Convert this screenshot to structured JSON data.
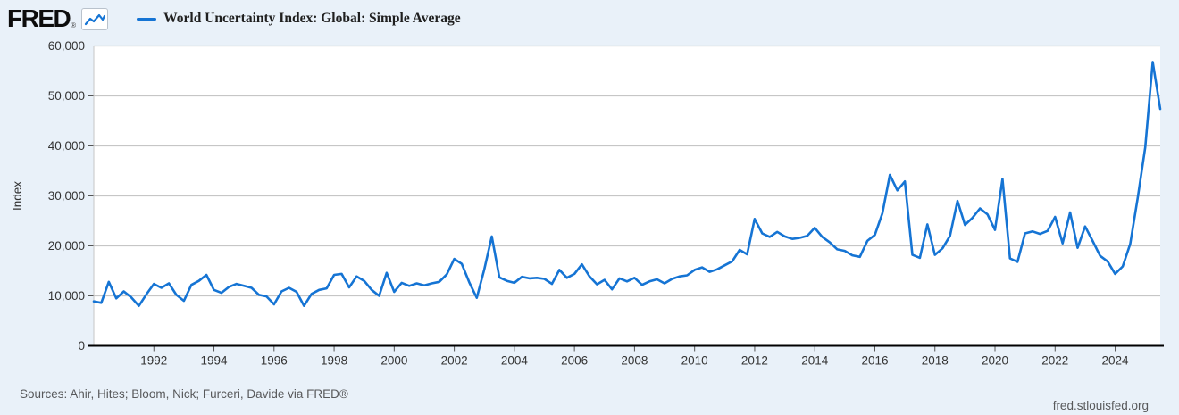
{
  "header": {
    "logo_text": "FRED",
    "logo_reg": "®",
    "legend_label": "World Uncertainty Index: Global: Simple Average"
  },
  "footer": {
    "sources": "Sources: Ahir, Hites; Bloom, Nick; Furceri, Davide via FRED®",
    "site": "fred.stlouisfed.org"
  },
  "colors": {
    "page_background": "#e9f1f9",
    "plot_background": "#ffffff",
    "series_line": "#1574d4",
    "gridline": "#c6c6c6",
    "axis_line": "#000000",
    "tick_label": "#333333",
    "footer_text": "#58595b"
  },
  "chart_data": {
    "type": "line",
    "title": "World Uncertainty Index: Global: Simple Average",
    "ylabel": "Index",
    "xlabel": "",
    "ylim": [
      0,
      60000
    ],
    "y_ticks": [
      0,
      10000,
      20000,
      30000,
      40000,
      50000,
      60000
    ],
    "x_ticks": [
      1992,
      1994,
      1996,
      1998,
      2000,
      2002,
      2004,
      2006,
      2008,
      2010,
      2012,
      2014,
      2016,
      2018,
      2020,
      2022,
      2024
    ],
    "grid": true,
    "legend_position": "top",
    "frequency": "quarterly",
    "x_start_year": 1990.0,
    "x_end_year": 2025.5,
    "series": [
      {
        "name": "World Uncertainty Index: Global: Simple Average",
        "color": "#1574d4",
        "values": [
          8900,
          8600,
          12800,
          9500,
          10900,
          9700,
          8000,
          10300,
          12400,
          11600,
          12500,
          10200,
          9000,
          12200,
          13000,
          14200,
          11200,
          10600,
          11800,
          12400,
          12000,
          11600,
          10200,
          9900,
          8300,
          10900,
          11600,
          10800,
          8000,
          10400,
          11200,
          11500,
          14200,
          14400,
          11700,
          13900,
          13000,
          11200,
          10000,
          14600,
          10800,
          12600,
          12000,
          12500,
          12100,
          12500,
          12800,
          14300,
          17400,
          16400,
          12700,
          9600,
          15300,
          21900,
          13700,
          13000,
          12600,
          13800,
          13500,
          13600,
          13400,
          12400,
          15200,
          13600,
          14400,
          16300,
          13900,
          12300,
          13200,
          11300,
          13500,
          12900,
          13600,
          12200,
          12900,
          13300,
          12500,
          13400,
          13900,
          14100,
          15200,
          15700,
          14800,
          15300,
          16100,
          16900,
          19200,
          18300,
          25400,
          22500,
          21800,
          22800,
          21900,
          21400,
          21600,
          22000,
          23600,
          21800,
          20700,
          19300,
          19000,
          18100,
          17800,
          21000,
          22200,
          26500,
          34200,
          31100,
          32900,
          18200,
          17600,
          24300,
          18200,
          19500,
          22000,
          29000,
          24200,
          25600,
          27500,
          26300,
          23200,
          33400,
          17500,
          16800,
          22500,
          22900,
          22400,
          23000,
          25800,
          20500,
          26700,
          19600,
          23900,
          21000,
          18000,
          16900,
          14400,
          15900,
          20400,
          29600,
          39700,
          56800,
          47400
        ]
      }
    ]
  }
}
